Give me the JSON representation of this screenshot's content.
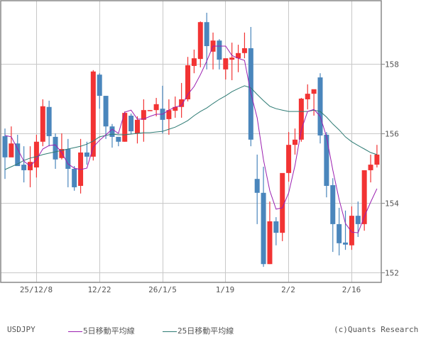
{
  "chart_data": {
    "type": "candlestick",
    "title": "USDJPY",
    "symbol": "USDJPY",
    "xlabel": "",
    "ylabel": "",
    "ylim": [
      151.7,
      159.8
    ],
    "y_ticks": [
      152,
      154,
      156,
      158
    ],
    "x_ticks": [
      "25/12/8",
      "12/22",
      "26/1/5",
      "1/19",
      "2/2",
      "2/16"
    ],
    "grid": true,
    "legend": [
      {
        "name": "5日移動平均線",
        "color": "#9B1FB0"
      },
      {
        "name": "25日移動平均線",
        "color": "#2E7B74"
      }
    ],
    "colors": {
      "up": "#F23333",
      "down": "#4A86BC",
      "ma5": "#9B1FB0",
      "ma25": "#2E7B74",
      "grid": "#C8C8C8",
      "frame": "#888888"
    },
    "candles": [
      {
        "o": 155.92,
        "h": 156.14,
        "l": 154.69,
        "c": 155.31
      },
      {
        "o": 155.31,
        "h": 156.2,
        "l": 155.39,
        "c": 155.71
      },
      {
        "o": 155.71,
        "h": 155.96,
        "l": 155.2,
        "c": 155.06
      },
      {
        "o": 155.1,
        "h": 155.63,
        "l": 154.59,
        "c": 154.94
      },
      {
        "o": 154.94,
        "h": 155.63,
        "l": 154.45,
        "c": 155.18
      },
      {
        "o": 155.02,
        "h": 155.96,
        "l": 154.73,
        "c": 155.76
      },
      {
        "o": 155.76,
        "h": 156.98,
        "l": 155.63,
        "c": 156.78
      },
      {
        "o": 156.76,
        "h": 156.94,
        "l": 155.63,
        "c": 155.92
      },
      {
        "o": 155.9,
        "h": 156.0,
        "l": 154.98,
        "c": 155.25
      },
      {
        "o": 155.29,
        "h": 156.0,
        "l": 155.25,
        "c": 155.55
      },
      {
        "o": 155.55,
        "h": 155.84,
        "l": 154.45,
        "c": 154.98
      },
      {
        "o": 154.98,
        "h": 155.06,
        "l": 154.35,
        "c": 154.45
      },
      {
        "o": 154.49,
        "h": 155.84,
        "l": 154.27,
        "c": 155.45
      },
      {
        "o": 155.45,
        "h": 155.76,
        "l": 155.1,
        "c": 155.33
      },
      {
        "o": 155.33,
        "h": 157.82,
        "l": 155.22,
        "c": 157.78
      },
      {
        "o": 157.69,
        "h": 157.73,
        "l": 156.71,
        "c": 157.08
      },
      {
        "o": 157.08,
        "h": 157.08,
        "l": 155.84,
        "c": 156.2
      },
      {
        "o": 156.2,
        "h": 156.27,
        "l": 155.59,
        "c": 155.9
      },
      {
        "o": 155.9,
        "h": 155.9,
        "l": 155.63,
        "c": 155.76
      },
      {
        "o": 155.76,
        "h": 156.63,
        "l": 155.76,
        "c": 156.59
      },
      {
        "o": 156.51,
        "h": 156.57,
        "l": 155.98,
        "c": 156.06
      },
      {
        "o": 156.0,
        "h": 156.49,
        "l": 155.71,
        "c": 156.39
      },
      {
        "o": 156.39,
        "h": 156.98,
        "l": 155.76,
        "c": 156.67
      },
      {
        "o": 156.65,
        "h": 156.67,
        "l": 156.65,
        "c": 156.67
      },
      {
        "o": 156.67,
        "h": 157.02,
        "l": 156.49,
        "c": 156.84
      },
      {
        "o": 156.71,
        "h": 157.37,
        "l": 156.0,
        "c": 156.39
      },
      {
        "o": 156.41,
        "h": 156.98,
        "l": 155.96,
        "c": 156.67
      },
      {
        "o": 156.65,
        "h": 157.06,
        "l": 156.45,
        "c": 156.76
      },
      {
        "o": 156.76,
        "h": 157.45,
        "l": 156.45,
        "c": 156.98
      },
      {
        "o": 156.98,
        "h": 158.2,
        "l": 156.92,
        "c": 157.96
      },
      {
        "o": 157.94,
        "h": 158.41,
        "l": 157.73,
        "c": 158.16
      },
      {
        "o": 158.14,
        "h": 159.22,
        "l": 157.9,
        "c": 159.2
      },
      {
        "o": 159.2,
        "h": 159.47,
        "l": 157.84,
        "c": 158.51
      },
      {
        "o": 158.35,
        "h": 158.9,
        "l": 157.84,
        "c": 158.67
      },
      {
        "o": 158.67,
        "h": 158.71,
        "l": 157.84,
        "c": 158.12
      },
      {
        "o": 157.84,
        "h": 158.16,
        "l": 157.55,
        "c": 158.16
      },
      {
        "o": 158.12,
        "h": 158.61,
        "l": 157.53,
        "c": 158.18
      },
      {
        "o": 158.16,
        "h": 158.55,
        "l": 157.76,
        "c": 158.31
      },
      {
        "o": 158.31,
        "h": 158.9,
        "l": 158.16,
        "c": 158.45
      },
      {
        "o": 158.45,
        "h": 159.06,
        "l": 155.63,
        "c": 155.82
      },
      {
        "o": 154.69,
        "h": 155.39,
        "l": 153.39,
        "c": 154.29
      },
      {
        "o": 154.29,
        "h": 155.04,
        "l": 152.16,
        "c": 152.24
      },
      {
        "o": 152.24,
        "h": 154.04,
        "l": 152.24,
        "c": 153.47
      },
      {
        "o": 153.47,
        "h": 153.59,
        "l": 152.78,
        "c": 153.14
      },
      {
        "o": 153.14,
        "h": 154.53,
        "l": 152.9,
        "c": 154.86
      },
      {
        "o": 154.86,
        "h": 156.04,
        "l": 154.61,
        "c": 155.67
      },
      {
        "o": 155.67,
        "h": 156.14,
        "l": 155.39,
        "c": 155.82
      },
      {
        "o": 155.82,
        "h": 157.02,
        "l": 155.76,
        "c": 157.0
      },
      {
        "o": 156.98,
        "h": 157.41,
        "l": 156.69,
        "c": 157.14
      },
      {
        "o": 157.14,
        "h": 157.22,
        "l": 156.51,
        "c": 157.27
      },
      {
        "o": 157.61,
        "h": 157.73,
        "l": 155.71,
        "c": 155.94
      },
      {
        "o": 155.96,
        "h": 156.04,
        "l": 154.16,
        "c": 154.49
      },
      {
        "o": 154.51,
        "h": 154.71,
        "l": 152.59,
        "c": 153.39
      },
      {
        "o": 153.39,
        "h": 153.86,
        "l": 152.49,
        "c": 152.84
      },
      {
        "o": 152.86,
        "h": 153.78,
        "l": 152.65,
        "c": 152.8
      },
      {
        "o": 152.78,
        "h": 153.9,
        "l": 152.65,
        "c": 153.63
      },
      {
        "o": 153.63,
        "h": 154.04,
        "l": 153.02,
        "c": 153.39
      },
      {
        "o": 153.39,
        "h": 154.94,
        "l": 153.2,
        "c": 154.94
      },
      {
        "o": 154.94,
        "h": 155.39,
        "l": 154.59,
        "c": 155.1
      },
      {
        "o": 155.1,
        "h": 155.67,
        "l": 155.02,
        "c": 155.39
      }
    ],
    "ma5": [
      155.94,
      155.9,
      155.55,
      155.2,
      155.06,
      155.25,
      155.55,
      155.65,
      155.67,
      155.45,
      155.12,
      155.0,
      154.96,
      155.0,
      155.61,
      155.8,
      155.96,
      156.12,
      156.0,
      156.61,
      156.67,
      156.41,
      156.41,
      156.49,
      156.55,
      156.55,
      156.67,
      156.76,
      156.8,
      157.12,
      157.35,
      157.69,
      158.08,
      158.51,
      158.51,
      158.51,
      158.24,
      158.16,
      158.1,
      157.16,
      156.45,
      155.24,
      154.35,
      153.82,
      153.86,
      154.29,
      155.08,
      156.1,
      156.63,
      156.69,
      156.49,
      155.9,
      154.94,
      154.1,
      153.41,
      153.16,
      153.14,
      153.61,
      154.02,
      154.41
    ],
    "ma25": [
      154.96,
      155.04,
      155.12,
      155.22,
      155.29,
      155.33,
      155.39,
      155.43,
      155.47,
      155.51,
      155.55,
      155.59,
      155.63,
      155.69,
      155.78,
      155.9,
      155.94,
      155.98,
      155.96,
      155.96,
      155.98,
      156.0,
      156.02,
      156.02,
      156.04,
      156.06,
      156.12,
      156.18,
      156.27,
      156.37,
      156.51,
      156.63,
      156.73,
      156.86,
      156.98,
      157.08,
      157.2,
      157.29,
      157.37,
      157.31,
      157.12,
      156.94,
      156.78,
      156.71,
      156.67,
      156.63,
      156.63,
      156.63,
      156.63,
      156.67,
      156.63,
      156.47,
      156.27,
      156.1,
      155.9,
      155.76,
      155.65,
      155.55,
      155.45,
      155.39
    ]
  },
  "legend": {
    "symbol": "USDJPY",
    "ma5_label": "5日移動平均線",
    "ma25_label": "25日移動平均線",
    "credit": "(c)Quants Research"
  }
}
